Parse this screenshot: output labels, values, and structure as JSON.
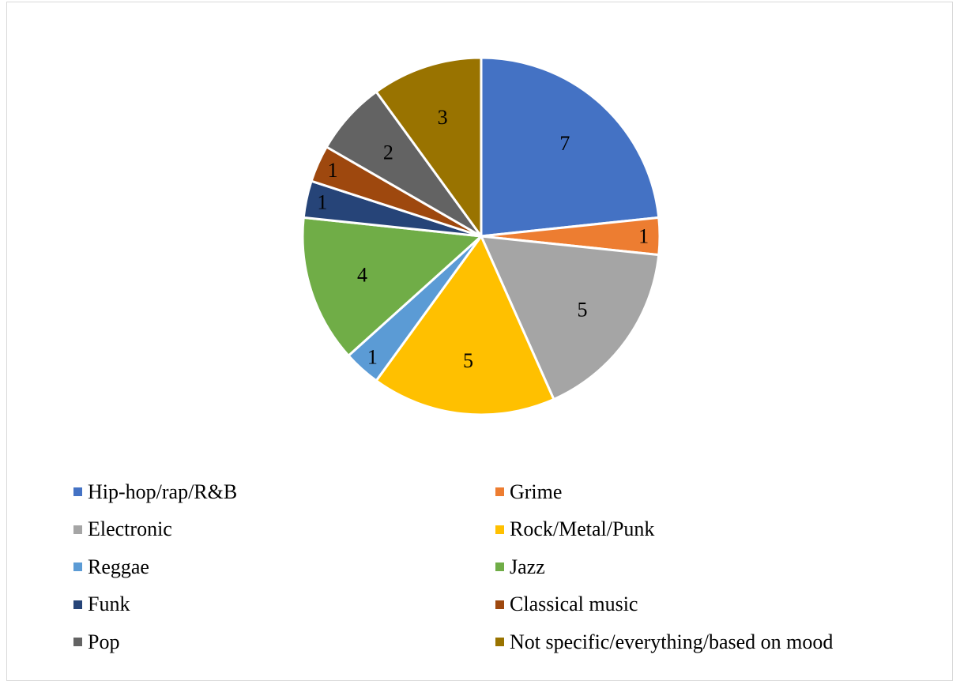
{
  "chart_data": {
    "type": "pie",
    "title": "",
    "legend_position": "bottom",
    "slices": [
      {
        "name": "Hip-hop/rap/R&B",
        "value": 7,
        "label": "7",
        "color": "#4472C4"
      },
      {
        "name": "Grime",
        "value": 1,
        "label": "1",
        "color": "#ED7D31"
      },
      {
        "name": "Electronic",
        "value": 5,
        "label": "5",
        "color": "#A5A5A5"
      },
      {
        "name": "Rock/Metal/Punk",
        "value": 5,
        "label": "5",
        "color": "#FFC000"
      },
      {
        "name": "Reggae",
        "value": 1,
        "label": "1",
        "color": "#5B9BD5"
      },
      {
        "name": "Jazz",
        "value": 4,
        "label": "4",
        "color": "#70AD47"
      },
      {
        "name": "Funk",
        "value": 1,
        "label": "1",
        "color": "#264478"
      },
      {
        "name": "Classical music",
        "value": 1,
        "label": "1",
        "color": "#9E480E"
      },
      {
        "name": "Pop",
        "value": 2,
        "label": "2",
        "color": "#636363"
      },
      {
        "name": "Not specific/everything/based on mood",
        "value": 3,
        "label": "3",
        "color": "#997300"
      }
    ]
  }
}
